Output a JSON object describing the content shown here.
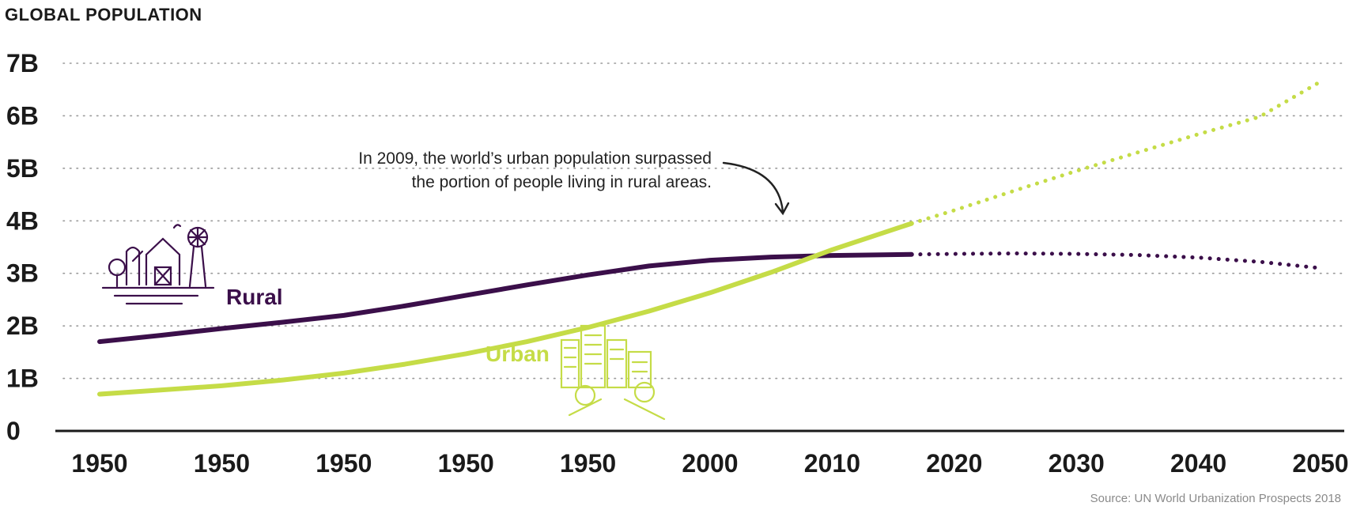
{
  "chart_data": {
    "type": "line",
    "ylabel": "GLOBAL POPULATION",
    "y_ticks": [
      "0",
      "1B",
      "2B",
      "3B",
      "4B",
      "5B",
      "6B",
      "7B"
    ],
    "ylim": [
      0,
      7
    ],
    "x_tick_labels": [
      "1950",
      "1950",
      "1950",
      "1950",
      "1950",
      "2000",
      "2010",
      "2020",
      "2030",
      "2040",
      "2050"
    ],
    "grid": "horizontal-dotted",
    "series": [
      {
        "name": "Rural",
        "color": "#3b0f4a",
        "values_solid": [
          [
            0,
            1.7
          ],
          [
            0.5,
            1.82
          ],
          [
            1,
            1.95
          ],
          [
            1.5,
            2.07
          ],
          [
            2,
            2.2
          ],
          [
            2.5,
            2.38
          ],
          [
            3,
            2.58
          ],
          [
            3.5,
            2.78
          ],
          [
            4,
            2.97
          ],
          [
            4.5,
            3.14
          ],
          [
            5,
            3.25
          ],
          [
            5.5,
            3.31
          ],
          [
            6,
            3.34
          ],
          [
            6.65,
            3.36
          ]
        ],
        "values_projected": [
          [
            6.65,
            3.36
          ],
          [
            7,
            3.37
          ],
          [
            7.5,
            3.38
          ],
          [
            8,
            3.37
          ],
          [
            8.5,
            3.35
          ],
          [
            9,
            3.3
          ],
          [
            9.5,
            3.22
          ],
          [
            10,
            3.1
          ]
        ]
      },
      {
        "name": "Urban",
        "color": "#c5dc47",
        "values_solid": [
          [
            0,
            0.7
          ],
          [
            0.5,
            0.78
          ],
          [
            1,
            0.86
          ],
          [
            1.5,
            0.97
          ],
          [
            2,
            1.1
          ],
          [
            2.5,
            1.27
          ],
          [
            3,
            1.47
          ],
          [
            3.5,
            1.7
          ],
          [
            4,
            1.97
          ],
          [
            4.5,
            2.28
          ],
          [
            5,
            2.63
          ],
          [
            5.5,
            3.02
          ],
          [
            6,
            3.45
          ],
          [
            6.65,
            3.95
          ]
        ],
        "values_projected": [
          [
            6.65,
            3.95
          ],
          [
            7,
            4.2
          ],
          [
            7.5,
            4.58
          ],
          [
            8,
            4.95
          ],
          [
            8.5,
            5.3
          ],
          [
            9,
            5.65
          ],
          [
            9.5,
            5.98
          ],
          [
            10,
            6.65
          ]
        ]
      }
    ],
    "annotation": {
      "line1": "In 2009, the world’s urban population surpassed",
      "line2": "the portion of people living in rural areas."
    },
    "source": "Source: UN World Urbanization Prospects 2018"
  }
}
